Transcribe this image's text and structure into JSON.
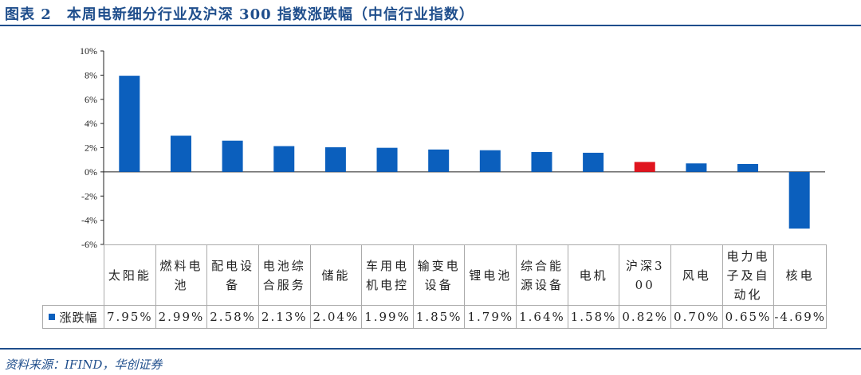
{
  "title": "图表 2　本周电新细分行业及沪深 300 指数涨跌幅（中信行业指数）",
  "source": "资料来源：IFIND，华创证券",
  "chart_data": {
    "type": "bar",
    "categories": [
      "太阳能",
      "燃料电池",
      "配电设备",
      "电池综合服务",
      "储能",
      "车用电机电控",
      "输变电设备",
      "锂电池",
      "综合能源设备",
      "电机",
      "沪深300",
      "风电",
      "电力电子及自动化",
      "核电"
    ],
    "series": [
      {
        "name": "涨跌幅",
        "values": [
          7.95,
          2.99,
          2.58,
          2.13,
          2.04,
          1.99,
          1.85,
          1.79,
          1.64,
          1.58,
          0.82,
          0.7,
          0.65,
          -4.69
        ],
        "labels": [
          "7.95%",
          "2.99%",
          "2.58%",
          "2.13%",
          "2.04%",
          "1.99%",
          "1.85%",
          "1.79%",
          "1.64%",
          "1.58%",
          "0.82%",
          "0.70%",
          "0.65%",
          "-4.69%"
        ]
      }
    ],
    "ylim": [
      -6,
      10
    ],
    "yticks": [
      "10%",
      "8%",
      "6%",
      "4%",
      "2%",
      "0%",
      "-2%",
      "-4%",
      "-6%"
    ],
    "ytick_values": [
      10,
      8,
      6,
      4,
      2,
      0,
      -2,
      -4,
      -6
    ],
    "legend": "bottom-data-table",
    "grid": false,
    "colors": {
      "default": "#0b5fbd",
      "highlight": "#e0141e",
      "highlight_category": "沪深300"
    }
  }
}
